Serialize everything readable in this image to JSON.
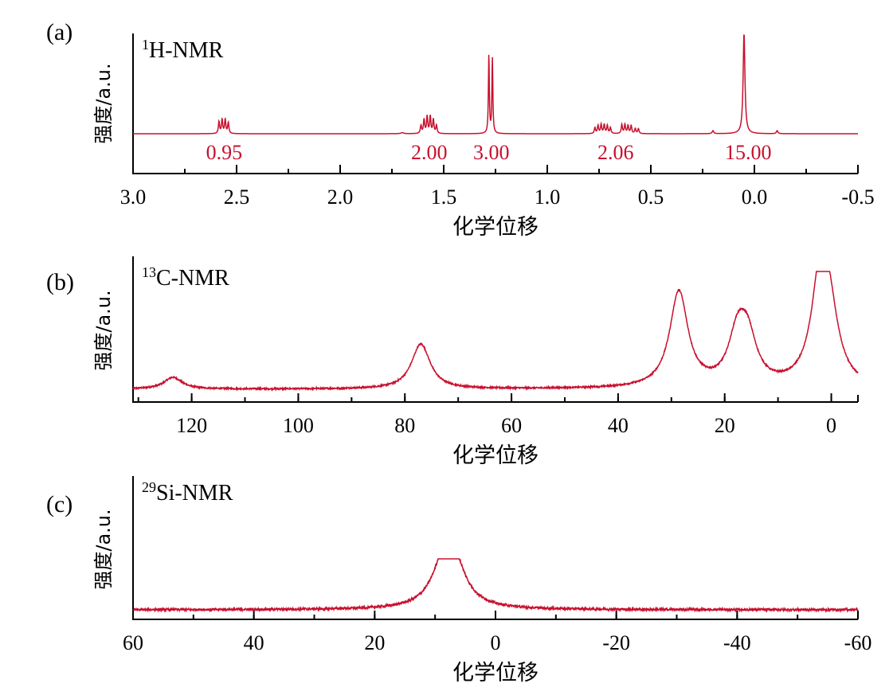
{
  "chart_data": [
    {
      "type": "line",
      "panel": "(a)",
      "nucleus_sup": "1",
      "nucleus_text": "H-NMR",
      "xlabel": "化学位移",
      "ylabel": "强度/a.u.",
      "xlim": [
        3.0,
        -0.5
      ],
      "x_ticks": [
        3.0,
        2.5,
        2.0,
        1.5,
        1.0,
        0.5,
        0.0,
        -0.5
      ],
      "x_tick_labels": [
        "3.0",
        "2.5",
        "2.0",
        "1.5",
        "1.0",
        "0.5",
        "0.0",
        "-0.5"
      ],
      "x_minor_step": 0.25,
      "ylim": [
        0,
        100
      ],
      "color": "#c8102e",
      "peaks": [
        {
          "x": 2.585,
          "h": 12,
          "w": 0.004
        },
        {
          "x": 2.57,
          "h": 14,
          "w": 0.004
        },
        {
          "x": 2.555,
          "h": 14,
          "w": 0.004
        },
        {
          "x": 2.54,
          "h": 11,
          "w": 0.004
        },
        {
          "x": 1.7,
          "h": 1,
          "w": 0.01
        },
        {
          "x": 1.61,
          "h": 8,
          "w": 0.004
        },
        {
          "x": 1.595,
          "h": 14,
          "w": 0.004
        },
        {
          "x": 1.58,
          "h": 17,
          "w": 0.004
        },
        {
          "x": 1.565,
          "h": 17,
          "w": 0.004
        },
        {
          "x": 1.55,
          "h": 14,
          "w": 0.004
        },
        {
          "x": 1.535,
          "h": 8,
          "w": 0.004
        },
        {
          "x": 1.282,
          "h": 78,
          "w": 0.003
        },
        {
          "x": 1.265,
          "h": 75,
          "w": 0.003
        },
        {
          "x": 0.77,
          "h": 6,
          "w": 0.004
        },
        {
          "x": 0.755,
          "h": 8,
          "w": 0.004
        },
        {
          "x": 0.74,
          "h": 9,
          "w": 0.004
        },
        {
          "x": 0.725,
          "h": 9,
          "w": 0.004
        },
        {
          "x": 0.71,
          "h": 8,
          "w": 0.004
        },
        {
          "x": 0.695,
          "h": 6,
          "w": 0.004
        },
        {
          "x": 0.64,
          "h": 9,
          "w": 0.004
        },
        {
          "x": 0.625,
          "h": 9,
          "w": 0.004
        },
        {
          "x": 0.61,
          "h": 8,
          "w": 0.004
        },
        {
          "x": 0.595,
          "h": 8,
          "w": 0.004
        },
        {
          "x": 0.575,
          "h": 5,
          "w": 0.004
        },
        {
          "x": 0.56,
          "h": 5,
          "w": 0.004
        },
        {
          "x": 0.2,
          "h": 3,
          "w": 0.005
        },
        {
          "x": 0.05,
          "h": 100,
          "w": 0.006
        },
        {
          "x": -0.11,
          "h": 3,
          "w": 0.005
        }
      ],
      "integrals": [
        {
          "label": "0.95",
          "x": 2.56
        },
        {
          "label": "2.00",
          "x": 1.57
        },
        {
          "label": "3.00",
          "x": 1.27
        },
        {
          "label": "2.06",
          "x": 0.67
        },
        {
          "label": "15.00",
          "x": 0.03
        }
      ]
    },
    {
      "type": "line",
      "panel": "(b)",
      "nucleus_sup": "13",
      "nucleus_text": "C-NMR",
      "xlabel": "化学位移",
      "ylabel": "强度/a.u.",
      "xlim": [
        131,
        -5
      ],
      "x_ticks": [
        120,
        100,
        80,
        60,
        40,
        20,
        0
      ],
      "x_tick_labels": [
        "120",
        "100",
        "80",
        "60",
        "40",
        "20",
        "0"
      ],
      "x_minor_step": 10,
      "ylim": [
        0,
        100
      ],
      "color": "#c8102e",
      "peaks": [
        {
          "x": 123.5,
          "h": 10,
          "w": 0.06
        },
        {
          "x": 77.4,
          "h": 13,
          "w": 0.06
        },
        {
          "x": 77.0,
          "h": 13,
          "w": 0.06
        },
        {
          "x": 76.6,
          "h": 13,
          "w": 0.06
        },
        {
          "x": 28.8,
          "h": 40,
          "w": 0.06
        },
        {
          "x": 28.4,
          "h": 42,
          "w": 0.06
        },
        {
          "x": 17.6,
          "h": 40,
          "w": 0.06
        },
        {
          "x": 15.7,
          "h": 37,
          "w": 0.06
        },
        {
          "x": 1.9,
          "h": 100,
          "w": 0.06
        },
        {
          "x": 0.2,
          "h": 37,
          "w": 0.06
        }
      ],
      "integrals": []
    },
    {
      "type": "line",
      "panel": "(c)",
      "nucleus_sup": "29",
      "nucleus_text": "Si-NMR",
      "xlabel": "化学位移",
      "ylabel": "强度/a.u.",
      "xlim": [
        60,
        -60
      ],
      "x_ticks": [
        60,
        40,
        20,
        0,
        -20,
        -40,
        -60
      ],
      "x_tick_labels": [
        "60",
        "40",
        "20",
        "0",
        "-20",
        "-40",
        "-60"
      ],
      "x_minor_step": 10,
      "ylim": [
        0,
        100
      ],
      "color": "#c8102e",
      "peaks": [
        {
          "x": 8.2,
          "h": 100,
          "w": 0.08
        },
        {
          "x": 6.8,
          "h": 52,
          "w": 0.08
        }
      ],
      "integrals": []
    }
  ]
}
